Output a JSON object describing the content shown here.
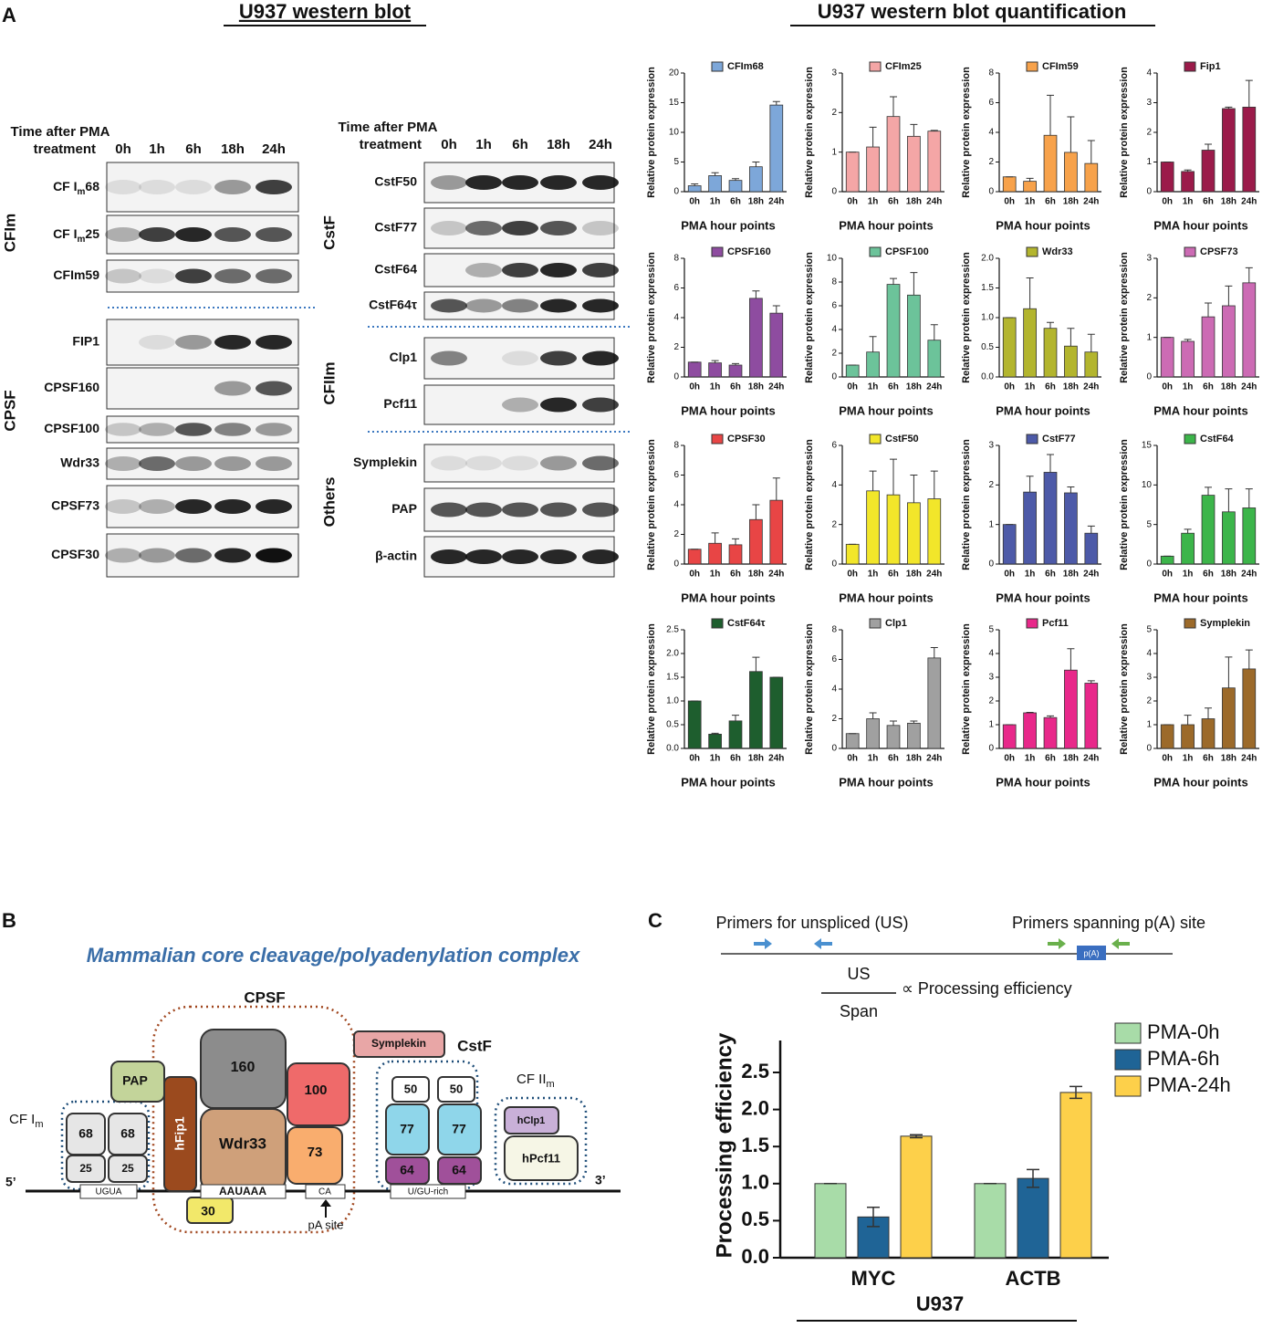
{
  "panel_labels": [
    "A",
    "B",
    "C"
  ],
  "blot": {
    "title": "U937 western blot",
    "quant_title": "U937 western blot quantification",
    "header": [
      "Time after PMA",
      "treatment"
    ],
    "lanes": [
      "0h",
      "1h",
      "6h",
      "18h",
      "24h"
    ],
    "left_rows": [
      {
        "text": "CF I",
        "sub": "m",
        "tail": "68"
      },
      {
        "text": "CF I",
        "sub": "m",
        "tail": "25"
      },
      "CFIm59",
      "FIP1",
      "CPSF160",
      "CPSF100",
      "Wdr33",
      "CPSF73",
      "CPSF30"
    ],
    "right_rows": [
      "CstF50",
      "CstF77",
      "CstF64",
      "CstF64τ",
      "Clp1",
      "Pcf11",
      "Symplekin",
      "PAP",
      "β-actin"
    ],
    "left_groups": [
      "CFIm",
      "CPSF"
    ],
    "right_groups": [
      "CstF",
      "CFIIm",
      "Others"
    ]
  },
  "chart_data": [
    {
      "type": "bar",
      "title": "CFIm68",
      "color": "#7da7d9",
      "categories": [
        "0h",
        "1h",
        "6h",
        "18h",
        "24h"
      ],
      "values": [
        1,
        2.7,
        1.9,
        4.2,
        14.6
      ],
      "errors": [
        0.3,
        0.5,
        0.3,
        0.8,
        0.6
      ],
      "ylim": [
        0,
        20
      ],
      "yticks": [
        0,
        5,
        10,
        15,
        20
      ],
      "x_label": "PMA hour points",
      "y_label": "Relative protein expression"
    },
    {
      "type": "bar",
      "title": "CFIm25",
      "color": "#f4a6a6",
      "categories": [
        "0h",
        "1h",
        "6h",
        "18h",
        "24h"
      ],
      "values": [
        1,
        1.13,
        1.9,
        1.4,
        1.53
      ],
      "errors": [
        0,
        0.5,
        0.5,
        0.3,
        0.02
      ],
      "ylim": [
        0,
        3
      ],
      "yticks": [
        0,
        1,
        2,
        3
      ],
      "x_label": "PMA hour points",
      "y_label": "Relative protein expression"
    },
    {
      "type": "bar",
      "title": "CFIm59",
      "color": "#f7a24b",
      "categories": [
        "0h",
        "1h",
        "6h",
        "18h",
        "24h"
      ],
      "values": [
        1,
        0.7,
        3.8,
        2.65,
        1.9
      ],
      "errors": [
        0,
        0.2,
        2.7,
        2.4,
        1.55
      ],
      "ylim": [
        0,
        8
      ],
      "yticks": [
        0,
        2,
        4,
        6,
        8
      ],
      "x_label": "PMA hour points",
      "y_label": "Relative protein expression"
    },
    {
      "type": "bar",
      "title": "Fip1",
      "color": "#9b1b4a",
      "categories": [
        "0h",
        "1h",
        "6h",
        "18h",
        "24h"
      ],
      "values": [
        1,
        0.68,
        1.4,
        2.8,
        2.85
      ],
      "errors": [
        0,
        0.05,
        0.2,
        0.05,
        0.9
      ],
      "ylim": [
        0,
        4
      ],
      "yticks": [
        0,
        1,
        2,
        3,
        4
      ],
      "x_label": "PMA hour points",
      "y_label": "Relative protein expression"
    },
    {
      "type": "bar",
      "title": "CPSF160",
      "color": "#8e4ca0",
      "categories": [
        "0h",
        "1h",
        "6h",
        "18h",
        "24h"
      ],
      "values": [
        1,
        0.95,
        0.8,
        5.3,
        4.3
      ],
      "errors": [
        0,
        0.15,
        0.1,
        0.5,
        0.5
      ],
      "ylim": [
        0,
        8
      ],
      "yticks": [
        0,
        2,
        4,
        6,
        8
      ],
      "x_label": "PMA hour points",
      "y_label": "Relative protein expression"
    },
    {
      "type": "bar",
      "title": "CPSF100",
      "color": "#6cc39a",
      "categories": [
        "0h",
        "1h",
        "6h",
        "18h",
        "24h"
      ],
      "values": [
        1,
        2.1,
        7.8,
        6.9,
        3.1
      ],
      "errors": [
        0,
        1.3,
        0.5,
        1.9,
        1.3
      ],
      "ylim": [
        0,
        10
      ],
      "yticks": [
        0,
        2,
        4,
        6,
        8,
        10
      ],
      "x_label": "PMA hour points",
      "y_label": "Relative protein expression"
    },
    {
      "type": "bar",
      "title": "Wdr33",
      "color": "#b3b52e",
      "categories": [
        "0h",
        "1h",
        "6h",
        "18h",
        "24h"
      ],
      "values": [
        1,
        1.15,
        0.82,
        0.52,
        0.42
      ],
      "errors": [
        0,
        0.52,
        0.1,
        0.3,
        0.3
      ],
      "ylim": [
        0,
        2
      ],
      "yticks": [
        {
          "value": 0,
          "label": "0.0"
        },
        {
          "value": 0.5,
          "label": "0.5"
        },
        {
          "value": 1,
          "label": "1.0"
        },
        {
          "value": 1.5,
          "label": "1.5"
        },
        {
          "value": 2,
          "label": "2.0"
        }
      ],
      "x_label": "PMA hour points",
      "y_label": "Relative protein expression"
    },
    {
      "type": "bar",
      "title": "CPSF73",
      "color": "#cc6bb4",
      "categories": [
        "0h",
        "1h",
        "6h",
        "18h",
        "24h"
      ],
      "values": [
        1,
        0.9,
        1.52,
        1.8,
        2.38
      ],
      "errors": [
        0,
        0.05,
        0.35,
        0.5,
        0.38
      ],
      "ylim": [
        0,
        3
      ],
      "yticks": [
        0,
        1,
        2,
        3
      ],
      "x_label": "PMA hour points",
      "y_label": "Relative protein expression"
    },
    {
      "type": "bar",
      "title": "CPSF30",
      "color": "#e84545",
      "categories": [
        "0h",
        "1h",
        "6h",
        "18h",
        "24h"
      ],
      "values": [
        1,
        1.4,
        1.3,
        3,
        4.3
      ],
      "errors": [
        0,
        0.7,
        0.4,
        1,
        1.5
      ],
      "ylim": [
        0,
        8
      ],
      "yticks": [
        0,
        2,
        4,
        6,
        8
      ],
      "x_label": "PMA hour points",
      "y_label": "Relative protein expression"
    },
    {
      "type": "bar",
      "title": "CstF50",
      "color": "#f2e62a",
      "categories": [
        "0h",
        "1h",
        "6h",
        "18h",
        "24h"
      ],
      "values": [
        1,
        3.7,
        3.5,
        3.1,
        3.3
      ],
      "errors": [
        0,
        1,
        1.8,
        1.4,
        1.4
      ],
      "ylim": [
        0,
        6
      ],
      "yticks": [
        0,
        2,
        4,
        6
      ],
      "x_label": "PMA hour points",
      "y_label": "Relative protein expression"
    },
    {
      "type": "bar",
      "title": "CstF77",
      "color": "#4d5aa8",
      "categories": [
        "0h",
        "1h",
        "6h",
        "18h",
        "24h"
      ],
      "values": [
        1,
        1.82,
        2.32,
        1.8,
        0.78
      ],
      "errors": [
        0,
        0.4,
        0.45,
        0.15,
        0.18
      ],
      "ylim": [
        0,
        3
      ],
      "yticks": [
        0,
        1,
        2,
        3
      ],
      "x_label": "PMA hour points",
      "y_label": "Relative protein expression"
    },
    {
      "type": "bar",
      "title": "CstF64",
      "color": "#3cb54a",
      "categories": [
        "0h",
        "1h",
        "6h",
        "18h",
        "24h"
      ],
      "values": [
        1,
        3.9,
        8.7,
        6.6,
        7.1
      ],
      "errors": [
        0,
        0.5,
        1,
        2.9,
        2.4
      ],
      "ylim": [
        0,
        15
      ],
      "yticks": [
        0,
        5,
        10,
        15
      ],
      "x_label": "PMA hour points",
      "y_label": "Relative protein expression"
    },
    {
      "type": "bar",
      "title": "CstF64τ",
      "color": "#1e5e2e",
      "categories": [
        "0h",
        "1h",
        "6h",
        "18h",
        "24h"
      ],
      "values": [
        1,
        0.3,
        0.58,
        1.62,
        1.5
      ],
      "errors": [
        0,
        0.02,
        0.12,
        0.3,
        0
      ],
      "ylim": [
        0,
        2.5
      ],
      "yticks": [
        {
          "value": 0,
          "label": "0.0"
        },
        {
          "value": 0.5,
          "label": "0.5"
        },
        {
          "value": 1,
          "label": "1.0"
        },
        {
          "value": 1.5,
          "label": "1.5"
        },
        {
          "value": 2,
          "label": "2.0"
        },
        {
          "value": 2.5,
          "label": "2.5"
        }
      ],
      "x_label": "PMA hour points",
      "y_label": "Relative protein expression"
    },
    {
      "type": "bar",
      "title": "Clp1",
      "color": "#a0a0a0",
      "categories": [
        "0h",
        "1h",
        "6h",
        "18h",
        "24h"
      ],
      "values": [
        1,
        2,
        1.55,
        1.7,
        6.1
      ],
      "errors": [
        0,
        0.4,
        0.3,
        0.15,
        0.7
      ],
      "ylim": [
        0,
        8
      ],
      "yticks": [
        0,
        2,
        4,
        6,
        8
      ],
      "x_label": "PMA hour points",
      "y_label": "Relative protein expression"
    },
    {
      "type": "bar",
      "title": "Pcf11",
      "color": "#e8288a",
      "categories": [
        "0h",
        "1h",
        "6h",
        "18h",
        "24h"
      ],
      "values": [
        1,
        1.5,
        1.3,
        3.3,
        2.75
      ],
      "errors": [
        0,
        0.02,
        0.07,
        0.9,
        0.1
      ],
      "ylim": [
        0,
        5
      ],
      "yticks": [
        0,
        1,
        2,
        3,
        4,
        5
      ],
      "x_label": "PMA hour points",
      "y_label": "Relative protein expression"
    },
    {
      "type": "bar",
      "title": "Symplekin",
      "color": "#9c6a2a",
      "categories": [
        "0h",
        "1h",
        "6h",
        "18h",
        "24h"
      ],
      "values": [
        1,
        1,
        1.25,
        2.55,
        3.35
      ],
      "errors": [
        0,
        0.4,
        0.45,
        1.3,
        0.8
      ],
      "ylim": [
        0,
        5
      ],
      "yticks": [
        0,
        1,
        2,
        3,
        4,
        5
      ],
      "x_label": "PMA hour points",
      "y_label": "Relative protein expression"
    },
    {
      "type": "grouped_bar",
      "categories": [
        "MYC",
        "ACTB"
      ],
      "x_label": "U937",
      "y_label": "Processing efficiency",
      "ylim": [
        0,
        2.5
      ],
      "yticks": [
        {
          "value": 0,
          "label": "0.0"
        },
        {
          "value": 0.5,
          "label": "0.5"
        },
        {
          "value": 1,
          "label": "1.0"
        },
        {
          "value": 1.5,
          "label": "1.5"
        },
        {
          "value": 2,
          "label": "2.0"
        },
        {
          "value": 2.5,
          "label": "2.5"
        }
      ],
      "series": [
        {
          "name": "PMA-0h",
          "color": "#a8dca8",
          "values": [
            1,
            1
          ],
          "errors": [
            0,
            0
          ]
        },
        {
          "name": "PMA-6h",
          "color": "#1f6496",
          "values": [
            0.55,
            1.07
          ],
          "errors": [
            0.13,
            0.12
          ]
        },
        {
          "name": "PMA-24h",
          "color": "#fdd04a",
          "values": [
            1.64,
            2.23
          ],
          "errors": [
            0.02,
            0.08
          ]
        }
      ]
    }
  ],
  "diagram": {
    "title": "Mammalian core cleavage/polyadenylation complex",
    "cpsf": "CPSF",
    "cstf": "CstF",
    "cfim": {
      "text": "CF I",
      "sub": "m"
    },
    "cfiim": {
      "text": "CF II",
      "sub": "m"
    },
    "pap": "PAP",
    "hfip1": "hFip1",
    "p160": "160",
    "wdr33": "Wdr33",
    "p100": "100",
    "p73": "73",
    "p30": "30",
    "symplekin": "Symplekin",
    "c50": "50",
    "c77": "77",
    "c64": "64",
    "c68": "68",
    "c25": "25",
    "hclp1": "hClp1",
    "hpcf11": "hPcf11",
    "five": "5’",
    "three": "3’",
    "ugua": "UGUA",
    "auuaaa": "AAUAAA",
    "ca": "CA",
    "ugu": "U/GU-rich",
    "pa_site": "pA site"
  },
  "assay": {
    "us_primers": "Primers for unspliced (US)",
    "pa_primers": "Primers spanning p(A) site",
    "pa_box": "p(A)",
    "numerator": "US",
    "denominator": "Span",
    "relation": "∝ Processing efficiency"
  }
}
